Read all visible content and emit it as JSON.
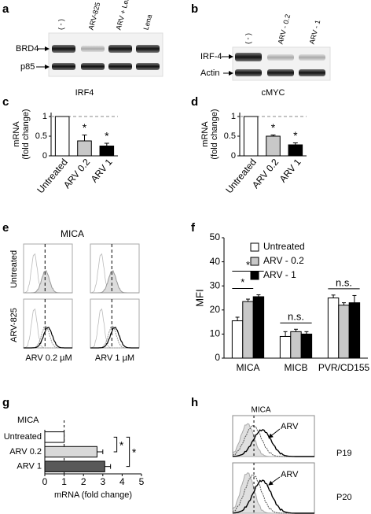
{
  "panel_labels": [
    "a",
    "b",
    "c",
    "d",
    "e",
    "f",
    "g",
    "h"
  ],
  "blots": {
    "a": {
      "lanes": [
        "( - )",
        "ARV-825",
        "ARV + Lena",
        "Lena"
      ],
      "rows": [
        "BRD4",
        "p85"
      ]
    },
    "b": {
      "lanes": [
        "( - )",
        "ARV - 0.2",
        "ARV - 1"
      ],
      "rows": [
        "IRF-4",
        "Actin"
      ]
    }
  },
  "flow_e": {
    "title": "MICA",
    "rows": [
      "Untreated",
      "ARV-825"
    ],
    "columns": [
      "ARV  0.2 µM",
      "ARV  1 µM"
    ]
  },
  "flow_h": {
    "title": "MICA",
    "panels": [
      "P19",
      "P20"
    ],
    "arrow_label": "ARV"
  },
  "chart_data": [
    {
      "type": "bar",
      "title": "IRF4",
      "ylabel": [
        "mRNA",
        "(fold change)"
      ],
      "categories": [
        "Untreated",
        "ARV 0.2",
        "ARV 1"
      ],
      "values": [
        1,
        0.38,
        0.25
      ],
      "errors": [
        null,
        0.15,
        0.07
      ],
      "colors": [
        "#ffffff",
        "#c8c8c8",
        "#000000"
      ],
      "ylim": [
        0,
        1.1
      ],
      "yticks": [
        0,
        0.5,
        1
      ],
      "reference_line": 1,
      "annotations": [
        "*",
        "*"
      ]
    },
    {
      "type": "bar",
      "title": "cMYC",
      "ylabel": [
        "mRNA",
        "(fold change)"
      ],
      "categories": [
        "Untreated",
        "ARV 0.2",
        "ARV 1"
      ],
      "values": [
        1,
        0.5,
        0.28
      ],
      "errors": [
        null,
        0.03,
        0.05
      ],
      "colors": [
        "#ffffff",
        "#c8c8c8",
        "#000000"
      ],
      "ylim": [
        0,
        1.1
      ],
      "yticks": [
        0,
        0.5,
        1
      ],
      "reference_line": 1,
      "annotations": [
        "*",
        "*"
      ]
    },
    {
      "type": "bar",
      "ylabel": "MFI",
      "categories": [
        "MICA",
        "MICB",
        "PVR/CD155"
      ],
      "series": [
        {
          "name": "Untreated",
          "color": "#ffffff",
          "values": [
            15.5,
            9,
            25
          ],
          "errors": [
            1.5,
            2,
            1.2
          ]
        },
        {
          "name": "ARV - 0.2",
          "color": "#c8c8c8",
          "values": [
            23.5,
            11,
            22
          ],
          "errors": [
            1,
            1,
            1
          ]
        },
        {
          "name": "ARV - 1",
          "color": "#000000",
          "values": [
            25.5,
            10,
            23
          ],
          "errors": [
            0.8,
            1,
            3
          ]
        }
      ],
      "ylim": [
        0,
        50
      ],
      "yticks": [
        0,
        10,
        20,
        30,
        40,
        50
      ],
      "legend": "top-left",
      "annotations": [
        "*",
        "*",
        "n.s.",
        "n.s."
      ]
    },
    {
      "type": "barh",
      "title": "MICA",
      "xlabel": "mRNA (fold change)",
      "categories": [
        "Untreated",
        "ARV 0.2",
        "ARV 1"
      ],
      "values": [
        1,
        2.7,
        3.1
      ],
      "errors": [
        null,
        0.3,
        0.3
      ],
      "colors": [
        "#ffffff",
        "#d9d9d9",
        "#595959"
      ],
      "xlim": [
        0,
        5
      ],
      "xticks": [
        0,
        1,
        2,
        3,
        4,
        5
      ],
      "reference_line": 1,
      "annotations": [
        "*",
        "*"
      ]
    }
  ]
}
